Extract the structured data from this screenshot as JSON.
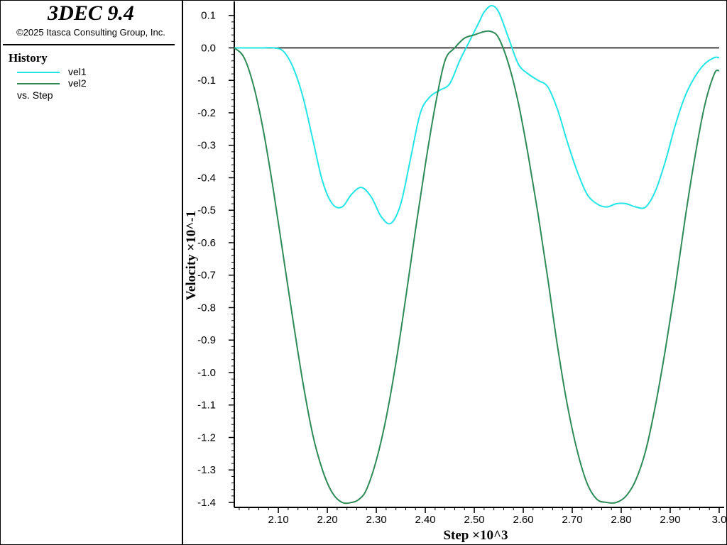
{
  "app": {
    "title": "3DEC 9.4",
    "copyright": "©2025 Itasca Consulting Group, Inc."
  },
  "legend": {
    "heading": "History",
    "items": [
      {
        "label": "vel1",
        "color": "#22e5e5"
      },
      {
        "label": "vel2",
        "color": "#2e8b57"
      }
    ],
    "vs_label": "vs. Step"
  },
  "chart_data": {
    "type": "line",
    "xlabel": "Step ×10^3",
    "ylabel": "Velocity ×10^-1",
    "xlim": [
      2.01,
      3.0
    ],
    "ylim": [
      -1.4,
      0.13
    ],
    "x_ticks": [
      "2.10",
      "2.20",
      "2.30",
      "2.40",
      "2.50",
      "2.60",
      "2.70",
      "2.80",
      "2.90",
      "3.0"
    ],
    "y_ticks": [
      "0.1",
      "0.0",
      "-0.1",
      "-0.2",
      "-0.3",
      "-0.4",
      "-0.5",
      "-0.6",
      "-0.7",
      "-0.8",
      "-0.9",
      "-1.0",
      "-1.1",
      "-1.2",
      "-1.3",
      "-1.4"
    ],
    "grid": false,
    "zero_line": true,
    "series": [
      {
        "name": "vel1",
        "color": "#22e5e5",
        "x": [
          2.01,
          2.04,
          2.07,
          2.09,
          2.11,
          2.13,
          2.15,
          2.17,
          2.19,
          2.21,
          2.23,
          2.25,
          2.27,
          2.29,
          2.31,
          2.33,
          2.35,
          2.37,
          2.39,
          2.41,
          2.43,
          2.45,
          2.47,
          2.49,
          2.51,
          2.52,
          2.535,
          2.55,
          2.57,
          2.59,
          2.61,
          2.63,
          2.65,
          2.67,
          2.69,
          2.71,
          2.73,
          2.75,
          2.77,
          2.79,
          2.81,
          2.83,
          2.85,
          2.87,
          2.89,
          2.91,
          2.93,
          2.95,
          2.97,
          2.99,
          3.0
        ],
        "y": [
          0.0,
          0.0,
          0.0,
          0.0,
          -0.01,
          -0.06,
          -0.15,
          -0.28,
          -0.41,
          -0.48,
          -0.49,
          -0.45,
          -0.43,
          -0.46,
          -0.52,
          -0.54,
          -0.48,
          -0.34,
          -0.2,
          -0.15,
          -0.13,
          -0.11,
          -0.04,
          0.02,
          0.08,
          0.11,
          0.13,
          0.11,
          0.03,
          -0.05,
          -0.08,
          -0.1,
          -0.12,
          -0.19,
          -0.29,
          -0.38,
          -0.45,
          -0.48,
          -0.49,
          -0.48,
          -0.48,
          -0.49,
          -0.49,
          -0.44,
          -0.35,
          -0.24,
          -0.15,
          -0.09,
          -0.05,
          -0.03,
          -0.03
        ]
      },
      {
        "name": "vel2",
        "color": "#2e8b57",
        "x": [
          2.01,
          2.03,
          2.05,
          2.07,
          2.09,
          2.11,
          2.13,
          2.15,
          2.17,
          2.19,
          2.21,
          2.23,
          2.25,
          2.265,
          2.28,
          2.3,
          2.32,
          2.34,
          2.36,
          2.38,
          2.4,
          2.42,
          2.44,
          2.46,
          2.48,
          2.5,
          2.52,
          2.535,
          2.55,
          2.57,
          2.59,
          2.61,
          2.63,
          2.65,
          2.67,
          2.69,
          2.71,
          2.73,
          2.75,
          2.77,
          2.79,
          2.81,
          2.83,
          2.85,
          2.87,
          2.89,
          2.91,
          2.93,
          2.95,
          2.97,
          2.99,
          3.0
        ],
        "y": [
          0.0,
          -0.03,
          -0.12,
          -0.26,
          -0.44,
          -0.64,
          -0.84,
          -1.03,
          -1.19,
          -1.3,
          -1.37,
          -1.4,
          -1.4,
          -1.39,
          -1.36,
          -1.27,
          -1.14,
          -0.97,
          -0.77,
          -0.56,
          -0.36,
          -0.18,
          -0.04,
          0.0,
          0.03,
          0.04,
          0.05,
          0.05,
          0.03,
          -0.05,
          -0.17,
          -0.33,
          -0.51,
          -0.71,
          -0.92,
          -1.1,
          -1.24,
          -1.34,
          -1.39,
          -1.4,
          -1.4,
          -1.38,
          -1.33,
          -1.24,
          -1.1,
          -0.93,
          -0.74,
          -0.53,
          -0.34,
          -0.18,
          -0.08,
          -0.07
        ]
      }
    ]
  }
}
